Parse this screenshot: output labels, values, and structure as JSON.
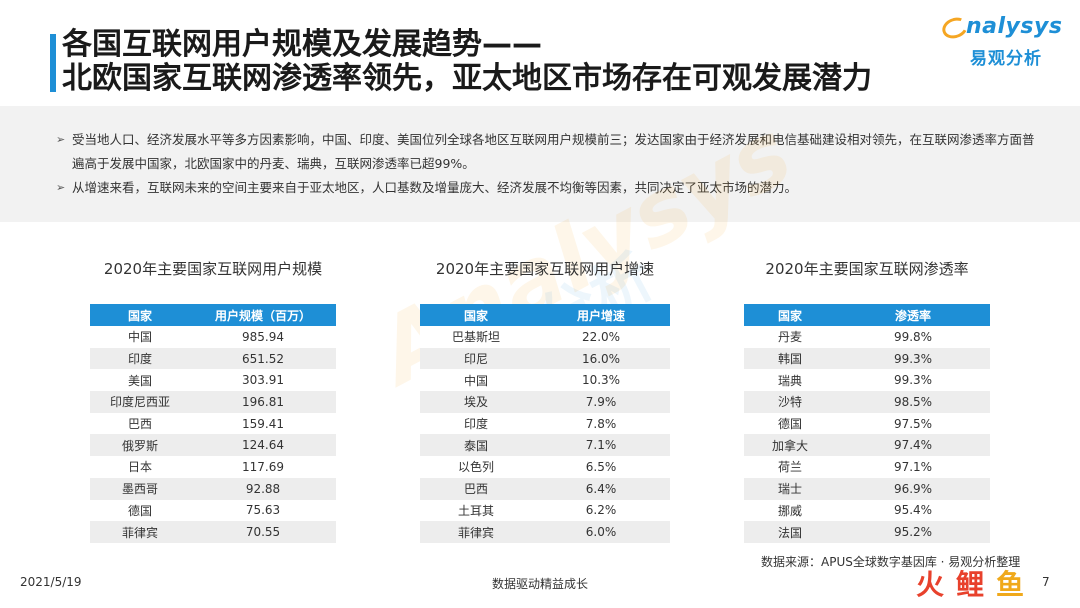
{
  "header": {
    "title_line1": "各国互联网用户规模及发展趋势——",
    "title_line2": "北欧国家互联网渗透率领先，亚太地区市场存在可观发展潜力",
    "logo_en": "nalysys",
    "logo_cn": "易观分析"
  },
  "summary": {
    "points": [
      "受当地人口、经济发展水平等多方因素影响，中国、印度、美国位列全球各地区互联网用户规模前三；发达国家由于经济发展和电信基础建设相对领先，在互联网渗透率方面普遍高于发展中国家，北欧国家中的丹麦、瑞典，互联网渗透率已超99%。",
      "从增速来看，互联网未来的空间主要来自于亚太地区，人口基数及增量庞大、经济发展不均衡等因素，共同决定了亚太市场的潜力。"
    ]
  },
  "watermark": {
    "en": "Analysys",
    "cn": "易观分析"
  },
  "tables": {
    "users": {
      "title": "2020年主要国家互联网用户规模",
      "headers": [
        "国家",
        "用户规模（百万）"
      ],
      "rows": [
        [
          "中国",
          "985.94"
        ],
        [
          "印度",
          "651.52"
        ],
        [
          "美国",
          "303.91"
        ],
        [
          "印度尼西亚",
          "196.81"
        ],
        [
          "巴西",
          "159.41"
        ],
        [
          "俄罗斯",
          "124.64"
        ],
        [
          "日本",
          "117.69"
        ],
        [
          "墨西哥",
          "92.88"
        ],
        [
          "德国",
          "75.63"
        ],
        [
          "菲律宾",
          "70.55"
        ]
      ]
    },
    "growth": {
      "title": "2020年主要国家互联网用户增速",
      "headers": [
        "国家",
        "用户增速"
      ],
      "rows": [
        [
          "巴基斯坦",
          "22.0%"
        ],
        [
          "印尼",
          "16.0%"
        ],
        [
          "中国",
          "10.3%"
        ],
        [
          "埃及",
          "7.9%"
        ],
        [
          "印度",
          "7.8%"
        ],
        [
          "泰国",
          "7.1%"
        ],
        [
          "以色列",
          "6.5%"
        ],
        [
          "巴西",
          "6.4%"
        ],
        [
          "土耳其",
          "6.2%"
        ],
        [
          "菲律宾",
          "6.0%"
        ]
      ]
    },
    "penetration": {
      "title": "2020年主要国家互联网渗透率",
      "headers": [
        "国家",
        "渗透率"
      ],
      "rows": [
        [
          "丹麦",
          "99.8%"
        ],
        [
          "韩国",
          "99.3%"
        ],
        [
          "瑞典",
          "99.3%"
        ],
        [
          "沙特",
          "98.5%"
        ],
        [
          "德国",
          "97.5%"
        ],
        [
          "加拿大",
          "97.4%"
        ],
        [
          "荷兰",
          "97.1%"
        ],
        [
          "瑞士",
          "96.9%"
        ],
        [
          "挪威",
          "95.4%"
        ],
        [
          "法国",
          "95.2%"
        ]
      ]
    }
  },
  "source": "数据来源：APUS全球数字基因库 · 易观分析整理",
  "footer": {
    "date": "2021/5/19",
    "center": "数据驱动精益成长",
    "page": "7"
  },
  "brand": {
    "chars": [
      "火",
      "鲤",
      "鱼"
    ],
    "colors": [
      "#e8412c",
      "#e8412c",
      "#f0a91b"
    ]
  },
  "colors": {
    "accent": "#1e8fd6",
    "logo_orange": "#f5a623",
    "row_alt": "#ededed"
  }
}
